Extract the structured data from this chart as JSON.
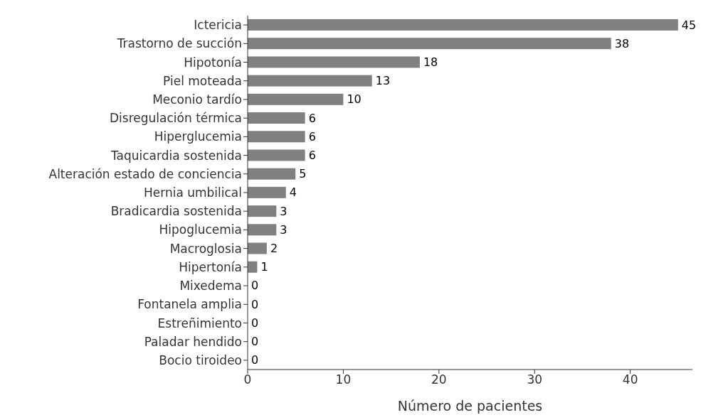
{
  "chart_data": {
    "type": "bar",
    "orientation": "horizontal",
    "xlabel": "Número de pacientes",
    "categories": [
      "Ictericia",
      "Trastorno de succión",
      "Hipotonía",
      "Piel moteada",
      "Meconio tardío",
      "Disregulación térmica",
      "Hiperglucemia",
      "Taquicardia sostenida",
      "Alteración estado de conciencia",
      "Hernia umbilical",
      "Bradicardia sostenida",
      "Hipoglucemia",
      "Macroglosia",
      "Hipertonía",
      "Mixedema",
      "Fontanela amplia",
      "Estreñimiento",
      "Paladar hendido",
      "Bocio tiroideo"
    ],
    "values": [
      45,
      38,
      18,
      13,
      10,
      6,
      6,
      6,
      5,
      4,
      3,
      3,
      2,
      1,
      0,
      0,
      0,
      0,
      0
    ],
    "color": "#808080",
    "xlim": [
      0,
      46.5
    ],
    "xticks": [
      0,
      10,
      20,
      30,
      40
    ],
    "data_labels": true,
    "grid": false,
    "legend": false
  }
}
